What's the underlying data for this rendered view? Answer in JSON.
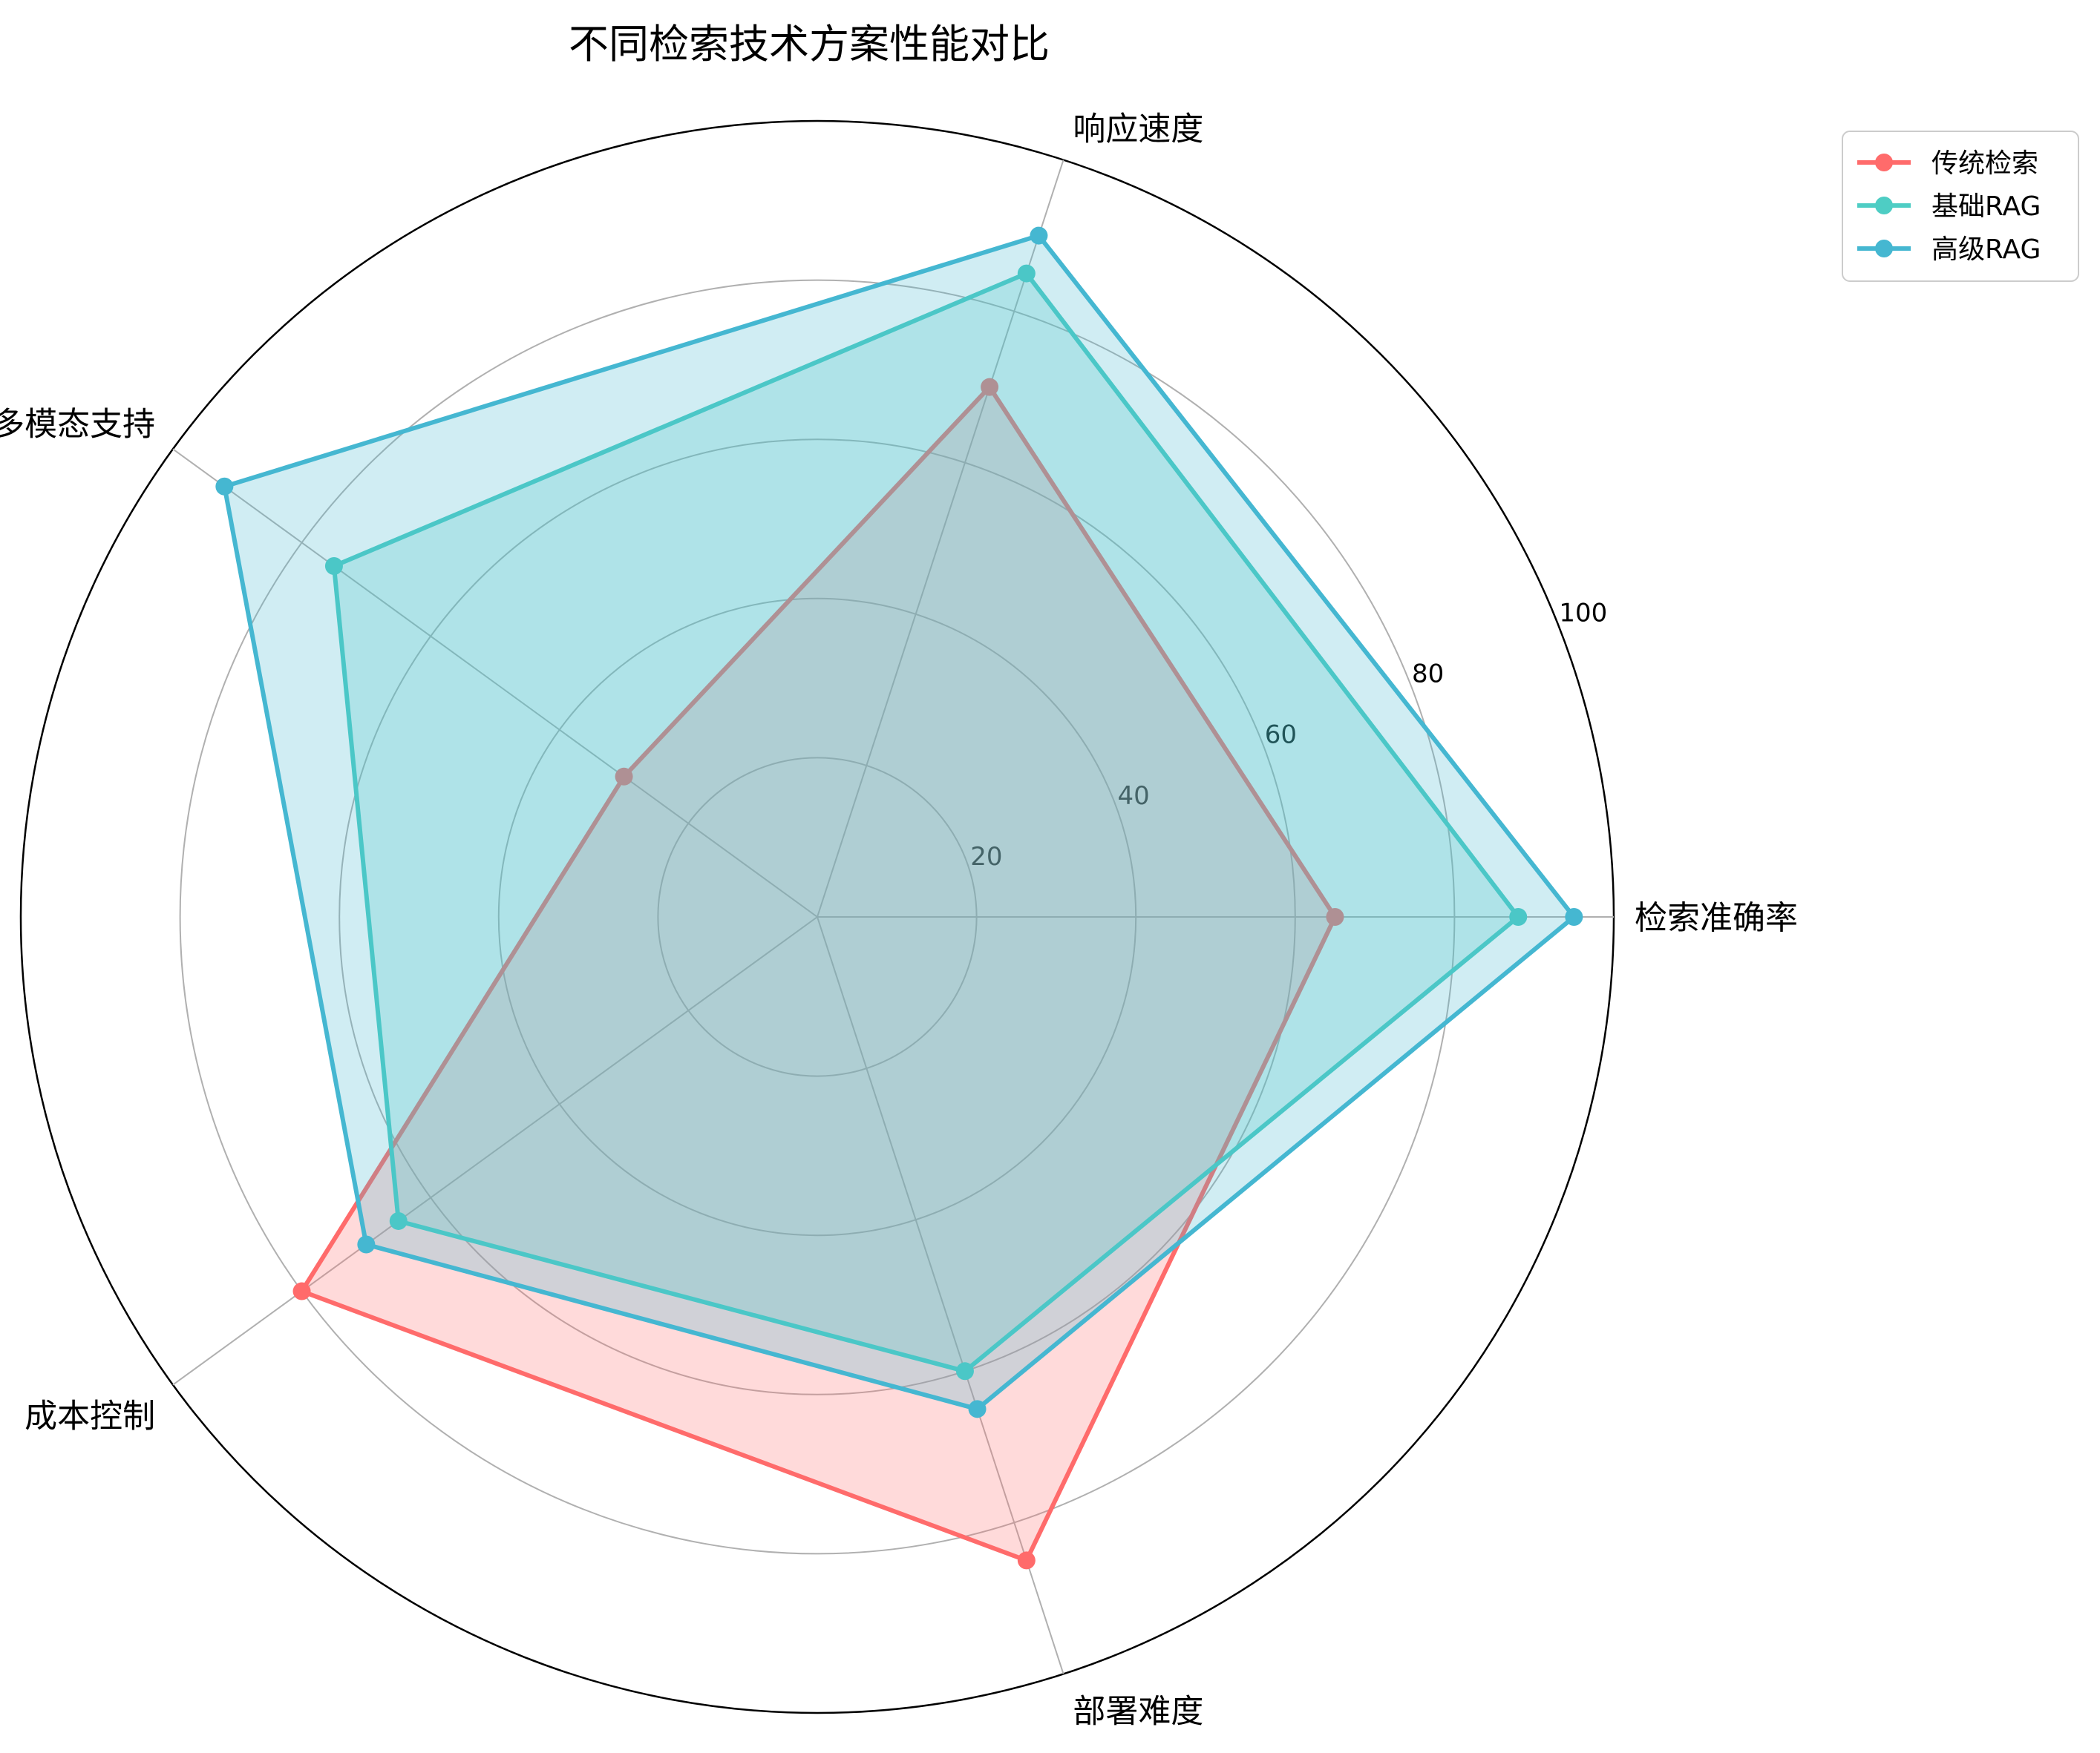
{
  "chart_data": {
    "type": "radar",
    "title": "不同检索技术方案性能对比",
    "axes": [
      "检索准确率",
      "响应速度",
      "多模态支持",
      "成本控制",
      "部署难度"
    ],
    "rlim": [
      0,
      100
    ],
    "rticks": [
      20,
      40,
      60,
      80,
      100
    ],
    "grid": true,
    "legend_position": "upper-right",
    "series": [
      {
        "name": "传统检索",
        "color": "#ff6b6b",
        "values": [
          65,
          70,
          30,
          80,
          85
        ]
      },
      {
        "name": "基础RAG",
        "color": "#4ecdc4",
        "values": [
          88,
          85,
          75,
          65,
          60
        ]
      },
      {
        "name": "高级RAG",
        "color": "#45b7d1",
        "values": [
          95,
          90,
          92,
          70,
          65
        ]
      }
    ]
  }
}
